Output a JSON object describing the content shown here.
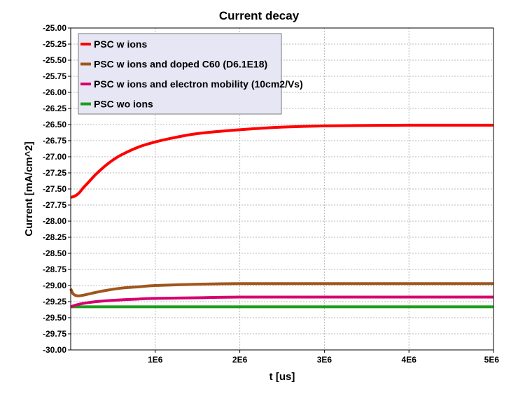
{
  "chart_data": {
    "type": "line",
    "title": "Current decay",
    "xlabel": "t [us]",
    "ylabel": "Current [mA/cm^2]",
    "xlim": [
      0,
      5000000
    ],
    "ylim": [
      -30.0,
      -25.0
    ],
    "x_ticks": [
      1000000,
      2000000,
      3000000,
      4000000,
      5000000
    ],
    "x_tick_labels": [
      "1E6",
      "2E6",
      "3E6",
      "4E6",
      "5E6"
    ],
    "y_ticks": [
      -25.0,
      -25.25,
      -25.5,
      -25.75,
      -26.0,
      -26.25,
      -26.5,
      -26.75,
      -27.0,
      -27.25,
      -27.5,
      -27.75,
      -28.0,
      -28.25,
      -28.5,
      -28.75,
      -29.0,
      -29.25,
      -29.5,
      -29.75,
      -30.0
    ],
    "y_tick_labels": [
      "-25.00",
      "-25.25",
      "-25.50",
      "-25.75",
      "-26.00",
      "-26.25",
      "-26.50",
      "-26.75",
      "-27.00",
      "-27.25",
      "-27.50",
      "-27.75",
      "-28.00",
      "-28.25",
      "-28.50",
      "-28.75",
      "-29.00",
      "-29.25",
      "-29.50",
      "-29.75",
      "-30.00"
    ],
    "grid": true,
    "legend_position": "top-left",
    "legend_background": "#e6e6f5",
    "series": [
      {
        "name": "PSC w ions",
        "color": "#ff0000",
        "x": [
          0,
          50000,
          100000,
          150000,
          200000,
          300000,
          400000,
          500000,
          600000,
          800000,
          1000000,
          1200000,
          1500000,
          2000000,
          2500000,
          3000000,
          4000000,
          5000000
        ],
        "y": [
          -27.63,
          -27.61,
          -27.56,
          -27.48,
          -27.41,
          -27.27,
          -27.15,
          -27.05,
          -26.97,
          -26.85,
          -26.77,
          -26.71,
          -26.64,
          -26.58,
          -26.54,
          -26.52,
          -26.51,
          -26.51
        ]
      },
      {
        "name": "PSC w ions and doped C60 (D6.1E18)",
        "color": "#a0561c",
        "x": [
          0,
          30000,
          80000,
          150000,
          250000,
          400000,
          600000,
          800000,
          1000000,
          1500000,
          2000000,
          3000000,
          4000000,
          5000000
        ],
        "y": [
          -29.05,
          -29.13,
          -29.16,
          -29.15,
          -29.12,
          -29.08,
          -29.04,
          -29.02,
          -29.0,
          -28.98,
          -28.97,
          -28.97,
          -28.97,
          -28.97
        ]
      },
      {
        "name": "PSC w ions and electron mobility (10cm2/Vs)",
        "color": "#d6006e",
        "x": [
          0,
          100000,
          300000,
          500000,
          800000,
          1000000,
          1500000,
          2000000,
          3000000,
          4000000,
          5000000
        ],
        "y": [
          -29.33,
          -29.29,
          -29.25,
          -29.23,
          -29.21,
          -29.2,
          -29.19,
          -29.18,
          -29.18,
          -29.18,
          -29.18
        ]
      },
      {
        "name": "PSC wo ions",
        "color": "#1a9e1a",
        "x": [
          0,
          1000000,
          2000000,
          3000000,
          4000000,
          5000000
        ],
        "y": [
          -29.33,
          -29.33,
          -29.33,
          -29.33,
          -29.33,
          -29.33
        ]
      }
    ]
  }
}
